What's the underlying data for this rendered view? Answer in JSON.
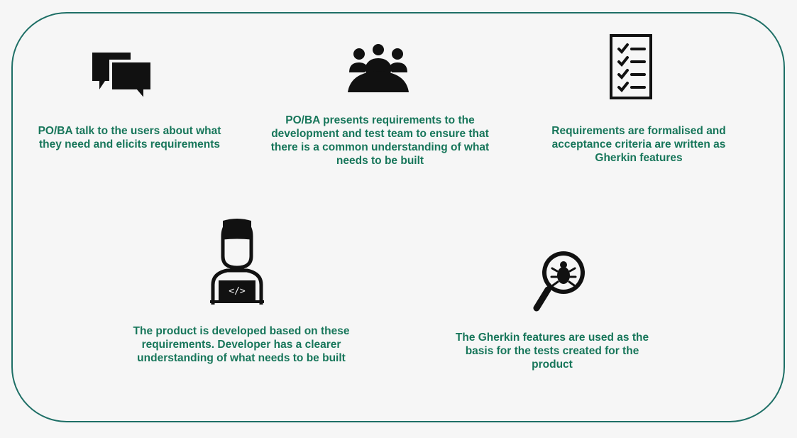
{
  "steps": [
    {
      "id": "elicit",
      "icon": "chat-bubbles-icon",
      "text": "PO/BA talk to the users about what they need and elicits requirements"
    },
    {
      "id": "present",
      "icon": "team-group-icon",
      "text": "PO/BA presents requirements to the development and test team to ensure that there is a common understanding of what needs to be built"
    },
    {
      "id": "formalise",
      "icon": "checklist-icon",
      "text": "Requirements are formalised and acceptance criteria are written as Gherkin features"
    },
    {
      "id": "develop",
      "icon": "developer-icon",
      "text": "The product is developed based on these requirements. Developer has a clearer understanding of what needs to be built"
    },
    {
      "id": "test",
      "icon": "bug-search-icon",
      "text": "The Gherkin features are used as the basis for the tests created for the product"
    }
  ],
  "colors": {
    "accent": "#17765a",
    "border": "#1e6f66",
    "icon": "#111111",
    "background": "#f6f6f6"
  }
}
